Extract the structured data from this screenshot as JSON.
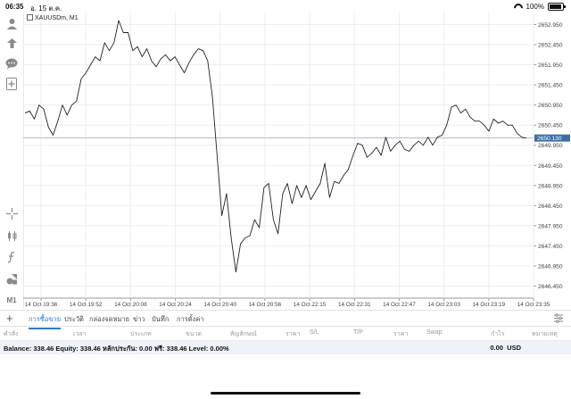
{
  "statusbar": {
    "time": "06:35",
    "date": "อ. 15 ต.ค.",
    "battery": "100%"
  },
  "chart": {
    "symbol": "XAUUSDm, M1",
    "current_price": "2650.130",
    "price_labels": [
      "2652.950",
      "2652.450",
      "2651.950",
      "2651.450",
      "2650.950",
      "2650.450",
      "2649.950",
      "2649.450",
      "2648.950",
      "2648.450",
      "2647.950",
      "2647.450",
      "2646.950",
      "2646.450"
    ],
    "time_labels": [
      "14 Oct 19:36",
      "14 Oct 19:52",
      "14 Oct 20:08",
      "14 Oct 20:24",
      "14 Oct 20:40",
      "14 Oct 20:56",
      "14 Oct 22:15",
      "14 Oct 22:31",
      "14 Oct 22:47",
      "14 Oct 23:03",
      "14 Oct 23:19",
      "14 Oct 23:35"
    ]
  },
  "chart_data": {
    "type": "line",
    "title": "",
    "ylim": [
      2646.15,
      2653.25
    ],
    "grid": true,
    "y": [
      2650.75,
      2650.8,
      2650.6,
      2650.95,
      2650.85,
      2650.4,
      2650.2,
      2650.55,
      2650.95,
      2650.7,
      2650.95,
      2651.05,
      2651.6,
      2651.75,
      2651.95,
      2652.15,
      2652.05,
      2652.5,
      2652.3,
      2652.5,
      2653.05,
      2652.75,
      2652.75,
      2652.3,
      2652.4,
      2652.15,
      2652.35,
      2652.05,
      2651.9,
      2652.1,
      2652.2,
      2652.05,
      2652.15,
      2651.95,
      2651.75,
      2652.0,
      2652.2,
      2652.35,
      2652.3,
      2652.05,
      2651.15,
      2649.7,
      2648.2,
      2648.75,
      2647.65,
      2646.8,
      2647.5,
      2647.65,
      2647.7,
      2648.1,
      2647.9,
      2648.9,
      2649.0,
      2648.1,
      2647.75,
      2648.75,
      2649.0,
      2648.5,
      2648.95,
      2648.65,
      2648.95,
      2648.6,
      2648.8,
      2649.0,
      2649.5,
      2648.65,
      2649.05,
      2649.0,
      2649.2,
      2649.35,
      2649.7,
      2650.0,
      2649.95,
      2649.65,
      2649.75,
      2649.9,
      2649.7,
      2650.15,
      2649.8,
      2649.95,
      2650.05,
      2649.85,
      2649.8,
      2649.95,
      2650.05,
      2649.95,
      2650.15,
      2649.95,
      2650.15,
      2650.2,
      2650.45,
      2650.9,
      2650.95,
      2650.75,
      2650.85,
      2650.65,
      2650.55,
      2650.55,
      2650.45,
      2650.3,
      2650.6,
      2650.5,
      2650.55,
      2650.45,
      2650.45,
      2650.25,
      2650.15,
      2650.13
    ]
  },
  "tabs": [
    "การซื้อขาย",
    "ประวัติ",
    "กล่องจดหมาย",
    "ข่าว",
    "บันทึก",
    "การตั้งค่า"
  ],
  "columns": [
    "คำสั่ง",
    "เวลา",
    "ประเภท",
    "ขนาด",
    "สัญลักษณ์",
    "ราคา",
    "S/L",
    "T/P",
    "ราคา",
    "Swap",
    "กำไร",
    "หมายเหตุ"
  ],
  "balance": {
    "text": "Balance: 338.46 Equity: 338.46 หลักประกัน: 0.00 ฟรี: 338.46 Level: 0.00%",
    "profit": "0.00",
    "currency": "USD"
  },
  "toolbar_icons": [
    "account-icon",
    "trade-icon",
    "chat-icon",
    "new-order-icon",
    "crosshair-icon",
    "candles-icon",
    "indicator-icon",
    "objects-icon",
    "timeframe-icon"
  ],
  "timeframe": "M1",
  "colors": {
    "line": "#222222",
    "price_badge": "#3a6ea5",
    "accent": "#2a7ad8"
  }
}
